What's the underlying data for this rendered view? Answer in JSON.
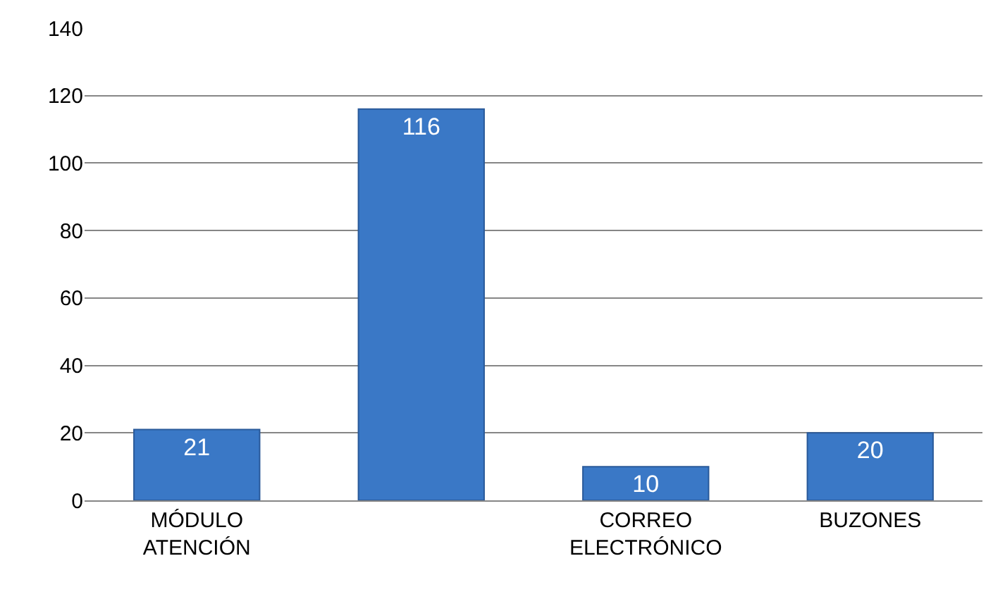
{
  "chart_data": {
    "type": "bar",
    "categories": [
      "MÓDULO ATENCIÓN",
      null,
      "CORREO ELECTRÓNICO",
      "BUZONES"
    ],
    "values": [
      21,
      116,
      10,
      20
    ],
    "color": "#3a78c6",
    "ylim": [
      0,
      140
    ],
    "yticks": [
      0,
      20,
      40,
      60,
      80,
      100,
      120,
      140
    ],
    "grid": "y",
    "data_labels": true,
    "legend": false
  }
}
